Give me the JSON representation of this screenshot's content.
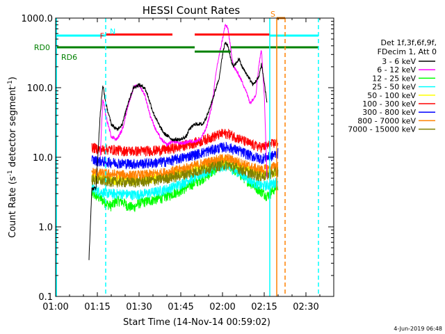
{
  "chart_data": {
    "type": "line",
    "title": "HESSI Count Rates",
    "xlabel": "Start Time (14-Nov-14 00:59:02)",
    "ylabel_main": "Count Rate (s",
    "ylabel_sup1": "-1",
    "ylabel_mid": " detector segment",
    "ylabel_sup2": "-1",
    "ylabel_end": ")",
    "x_range_minutes": [
      0,
      100
    ],
    "x_ticks": [
      {
        "m": 0,
        "label": "01:00"
      },
      {
        "m": 15,
        "label": "01:15"
      },
      {
        "m": 30,
        "label": "01:30"
      },
      {
        "m": 45,
        "label": "01:45"
      },
      {
        "m": 60,
        "label": "02:00"
      },
      {
        "m": 75,
        "label": "02:15"
      },
      {
        "m": 90,
        "label": "02:30"
      }
    ],
    "y_scale": "log",
    "y_range": [
      0.1,
      1000
    ],
    "y_ticks": [
      {
        "v": 0.1,
        "label": "0.1"
      },
      {
        "v": 1,
        "label": "1.0"
      },
      {
        "v": 10,
        "label": "10.0"
      },
      {
        "v": 100,
        "label": "100.0"
      },
      {
        "v": 1000,
        "label": "1000.0"
      }
    ],
    "legend_header": [
      "Det 1f,3f,6f,9f,",
      "FDecim 1, Att 0"
    ],
    "legend_position": "right",
    "series": [
      {
        "name": "3 - 6 keV",
        "color": "#000000",
        "points": [
          [
            12,
            0.35
          ],
          [
            13,
            3.5
          ],
          [
            14.5,
            3.6
          ],
          [
            16,
            40
          ],
          [
            17,
            110
          ],
          [
            18,
            60
          ],
          [
            20,
            30
          ],
          [
            22,
            25
          ],
          [
            24,
            30
          ],
          [
            26,
            60
          ],
          [
            28,
            100
          ],
          [
            30,
            110
          ],
          [
            32,
            100
          ],
          [
            33,
            80
          ],
          [
            35,
            45
          ],
          [
            37,
            30
          ],
          [
            39,
            22
          ],
          [
            42,
            18
          ],
          [
            45,
            18
          ],
          [
            47,
            20
          ],
          [
            48,
            25
          ],
          [
            50,
            30
          ],
          [
            53,
            30
          ],
          [
            55,
            45
          ],
          [
            57,
            80
          ],
          [
            59,
            150
          ],
          [
            60,
            300
          ],
          [
            61,
            450
          ],
          [
            62,
            400
          ],
          [
            63,
            250
          ],
          [
            64,
            200
          ],
          [
            66,
            260
          ],
          [
            67,
            200
          ],
          [
            69,
            150
          ],
          [
            71,
            110
          ],
          [
            73,
            140
          ],
          [
            74,
            220
          ],
          [
            75,
            120
          ],
          [
            76,
            60
          ]
        ]
      },
      {
        "name": "6 - 12 keV",
        "color": "#ff00ff",
        "points": [
          [
            16,
            10
          ],
          [
            17,
            70
          ],
          [
            18,
            40
          ],
          [
            20,
            20
          ],
          [
            22,
            18
          ],
          [
            24,
            25
          ],
          [
            26,
            55
          ],
          [
            28,
            100
          ],
          [
            30,
            110
          ],
          [
            32,
            80
          ],
          [
            34,
            40
          ],
          [
            36,
            25
          ],
          [
            38,
            18
          ],
          [
            40,
            15
          ],
          [
            42,
            17
          ],
          [
            44,
            16
          ],
          [
            46,
            16
          ],
          [
            48,
            17
          ],
          [
            50,
            17
          ],
          [
            52,
            18
          ],
          [
            54,
            25
          ],
          [
            56,
            50
          ],
          [
            58,
            200
          ],
          [
            60,
            500
          ],
          [
            61,
            800
          ],
          [
            62,
            700
          ],
          [
            63,
            350
          ],
          [
            64,
            200
          ],
          [
            66,
            150
          ],
          [
            68,
            100
          ],
          [
            70,
            60
          ],
          [
            72,
            80
          ],
          [
            73,
            200
          ],
          [
            74,
            360
          ],
          [
            75,
            80
          ],
          [
            76,
            5
          ]
        ]
      },
      {
        "name": "12 - 25 keV",
        "color": "#00ff00",
        "points": [
          [
            13,
            3.0
          ],
          [
            16,
            2.6
          ],
          [
            18,
            2.2
          ],
          [
            20,
            2.0
          ],
          [
            22,
            2.4
          ],
          [
            24,
            2.3
          ],
          [
            26,
            2.0
          ],
          [
            28,
            1.9
          ],
          [
            30,
            2.2
          ],
          [
            34,
            2.4
          ],
          [
            38,
            2.6
          ],
          [
            42,
            3.0
          ],
          [
            46,
            3.5
          ],
          [
            50,
            4.3
          ],
          [
            54,
            5.3
          ],
          [
            57,
            6.5
          ],
          [
            60,
            8.0
          ],
          [
            62,
            7.5
          ],
          [
            65,
            6.3
          ],
          [
            68,
            5.0
          ],
          [
            71,
            4.0
          ],
          [
            74,
            3.2
          ],
          [
            76,
            2.8
          ],
          [
            78,
            3.3
          ],
          [
            80,
            4.0
          ]
        ]
      },
      {
        "name": "25 - 50 keV",
        "color": "#00ffff",
        "points": [
          [
            13,
            3.6
          ],
          [
            16,
            3.2
          ],
          [
            20,
            3.0
          ],
          [
            24,
            3.0
          ],
          [
            28,
            2.9
          ],
          [
            32,
            3.0
          ],
          [
            36,
            3.2
          ],
          [
            40,
            3.5
          ],
          [
            44,
            4.0
          ],
          [
            48,
            4.8
          ],
          [
            52,
            5.6
          ],
          [
            56,
            6.6
          ],
          [
            60,
            7.5
          ],
          [
            62,
            7.3
          ],
          [
            65,
            6.4
          ],
          [
            68,
            5.3
          ],
          [
            71,
            4.4
          ],
          [
            74,
            3.9
          ],
          [
            77,
            4.0
          ],
          [
            80,
            4.6
          ]
        ]
      },
      {
        "name": "50 - 100 keV",
        "color": "#ffff00",
        "points": [
          [
            13,
            5.2
          ],
          [
            20,
            4.8
          ],
          [
            30,
            4.7
          ],
          [
            40,
            5.4
          ],
          [
            50,
            6.8
          ],
          [
            60,
            9.0
          ],
          [
            65,
            8.0
          ],
          [
            70,
            6.4
          ],
          [
            75,
            5.6
          ],
          [
            80,
            6.4
          ]
        ]
      },
      {
        "name": "100 - 300 keV",
        "color": "#ff0000",
        "points": [
          [
            13,
            14
          ],
          [
            16,
            13
          ],
          [
            20,
            13
          ],
          [
            24,
            12.5
          ],
          [
            28,
            12.3
          ],
          [
            32,
            12.4
          ],
          [
            36,
            12.6
          ],
          [
            40,
            13
          ],
          [
            44,
            14
          ],
          [
            48,
            15.5
          ],
          [
            52,
            17
          ],
          [
            56,
            19.5
          ],
          [
            60,
            22
          ],
          [
            62,
            22
          ],
          [
            65,
            19.5
          ],
          [
            68,
            17
          ],
          [
            71,
            15
          ],
          [
            74,
            14
          ],
          [
            77,
            15
          ],
          [
            80,
            17
          ]
        ]
      },
      {
        "name": "300 - 800 keV",
        "color": "#0000ff",
        "points": [
          [
            13,
            9.2
          ],
          [
            16,
            8.8
          ],
          [
            20,
            8.5
          ],
          [
            24,
            8.2
          ],
          [
            28,
            8.1
          ],
          [
            32,
            8.2
          ],
          [
            36,
            8.4
          ],
          [
            40,
            8.8
          ],
          [
            44,
            9.5
          ],
          [
            48,
            10.5
          ],
          [
            52,
            11.5
          ],
          [
            56,
            12.8
          ],
          [
            60,
            14
          ],
          [
            62,
            14
          ],
          [
            65,
            12.8
          ],
          [
            68,
            11.5
          ],
          [
            71,
            10.3
          ],
          [
            74,
            9.6
          ],
          [
            77,
            10.2
          ],
          [
            80,
            11.5
          ]
        ]
      },
      {
        "name": "800 - 7000 keV",
        "color": "#ff8000",
        "points": [
          [
            13,
            6.2
          ],
          [
            16,
            5.9
          ],
          [
            20,
            5.7
          ],
          [
            24,
            5.6
          ],
          [
            28,
            5.5
          ],
          [
            32,
            5.6
          ],
          [
            36,
            5.8
          ],
          [
            40,
            6.1
          ],
          [
            44,
            6.6
          ],
          [
            48,
            7.2
          ],
          [
            52,
            8.0
          ],
          [
            56,
            8.8
          ],
          [
            60,
            9.6
          ],
          [
            62,
            9.6
          ],
          [
            65,
            8.8
          ],
          [
            68,
            7.9
          ],
          [
            71,
            7.1
          ],
          [
            74,
            6.6
          ],
          [
            77,
            7.0
          ],
          [
            80,
            7.8
          ]
        ]
      },
      {
        "name": "7000 - 15000 keV",
        "color": "#808000",
        "points": [
          [
            13,
            4.8
          ],
          [
            16,
            4.6
          ],
          [
            20,
            4.5
          ],
          [
            24,
            4.4
          ],
          [
            28,
            4.4
          ],
          [
            32,
            4.5
          ],
          [
            36,
            4.7
          ],
          [
            40,
            5.0
          ],
          [
            44,
            5.4
          ],
          [
            48,
            5.9
          ],
          [
            52,
            6.5
          ],
          [
            56,
            7.2
          ],
          [
            60,
            7.8
          ],
          [
            62,
            7.8
          ],
          [
            65,
            7.1
          ],
          [
            68,
            6.3
          ],
          [
            71,
            5.7
          ],
          [
            74,
            5.3
          ],
          [
            77,
            5.7
          ],
          [
            80,
            6.3
          ]
        ]
      }
    ],
    "flag_bars": [
      {
        "label": "N",
        "color": "#00ffff",
        "segments": [
          [
            0,
            18
          ],
          [
            77,
            94.5
          ]
        ],
        "level": 560
      },
      {
        "label": "F",
        "color": "#ff0000",
        "segments": [
          [
            18,
            42
          ],
          [
            50,
            77
          ]
        ],
        "level": 580
      },
      {
        "label": "S",
        "color": "#ff8000",
        "segments": [
          [
            79.5,
            82.5
          ]
        ],
        "level": 1000
      },
      {
        "label": "RD0",
        "color": "#008000",
        "segments": [
          [
            0,
            50
          ],
          [
            63,
            94.5
          ]
        ],
        "level": 380
      },
      {
        "label": "RD6",
        "color": "#008000",
        "segments": [
          [
            50,
            63
          ]
        ],
        "level": 330
      }
    ],
    "vertical_markers": [
      {
        "m": 0.3,
        "color": "#00ffff",
        "style": "solid"
      },
      {
        "m": 18,
        "color": "#00ffff",
        "style": "dashed"
      },
      {
        "m": 77,
        "color": "#00ffff",
        "style": "solid"
      },
      {
        "m": 79.5,
        "color": "#ff8000",
        "style": "solid"
      },
      {
        "m": 82.5,
        "color": "#ff8000",
        "style": "dashed"
      },
      {
        "m": 94.5,
        "color": "#00ffff",
        "style": "dashed"
      }
    ],
    "grid": false
  },
  "footer": {
    "date_stamp": "4-Jun-2019 06:48"
  }
}
